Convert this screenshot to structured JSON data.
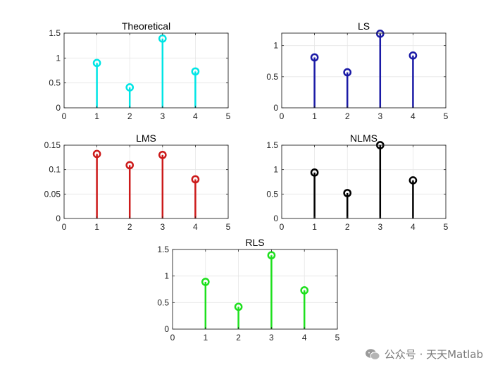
{
  "chart_data": [
    {
      "type": "stem",
      "title": "Theoretical",
      "color": "#00e5e5",
      "x": [
        1,
        2,
        3,
        4
      ],
      "values": [
        0.9,
        0.41,
        1.39,
        0.73
      ],
      "xlim": [
        0,
        5
      ],
      "ylim": [
        0,
        1.5
      ],
      "xticks": [
        "0",
        "1",
        "2",
        "3",
        "4",
        "5"
      ],
      "yticks": [
        "0",
        "0.5",
        "1",
        "1.5"
      ],
      "grid": true
    },
    {
      "type": "stem",
      "title": "LS",
      "color": "#1a1aa6",
      "x": [
        1,
        2,
        3,
        4
      ],
      "values": [
        0.81,
        0.57,
        1.19,
        0.84
      ],
      "xlim": [
        0,
        5
      ],
      "ylim": [
        0,
        1.2
      ],
      "xticks": [
        "0",
        "1",
        "2",
        "3",
        "4",
        "5"
      ],
      "yticks": [
        "0",
        "0.5",
        "1"
      ],
      "grid": true
    },
    {
      "type": "stem",
      "title": "LMS",
      "color": "#cc1a1a",
      "x": [
        1,
        2,
        3,
        4
      ],
      "values": [
        0.132,
        0.109,
        0.13,
        0.08
      ],
      "xlim": [
        0,
        5
      ],
      "ylim": [
        0,
        0.15
      ],
      "xticks": [
        "0",
        "1",
        "2",
        "3",
        "4",
        "5"
      ],
      "yticks": [
        "0",
        "0.05",
        "0.1",
        "0.15"
      ],
      "grid": true
    },
    {
      "type": "stem",
      "title": "NLMS",
      "color": "#000000",
      "x": [
        1,
        2,
        3,
        4
      ],
      "values": [
        0.94,
        0.52,
        1.5,
        0.78
      ],
      "xlim": [
        0,
        5
      ],
      "ylim": [
        0,
        1.5
      ],
      "xticks": [
        "0",
        "1",
        "2",
        "3",
        "4",
        "5"
      ],
      "yticks": [
        "0",
        "0.5",
        "1",
        "1.5"
      ],
      "grid": true
    },
    {
      "type": "stem",
      "title": "RLS",
      "color": "#1ee01e",
      "x": [
        1,
        2,
        3,
        4
      ],
      "values": [
        0.89,
        0.42,
        1.39,
        0.73
      ],
      "xlim": [
        0,
        5
      ],
      "ylim": [
        0,
        1.5
      ],
      "xticks": [
        "0",
        "1",
        "2",
        "3",
        "4",
        "5"
      ],
      "yticks": [
        "0",
        "0.5",
        "1",
        "1.5"
      ],
      "grid": true
    }
  ],
  "watermark": {
    "text": "公众号 · 天天Matlab",
    "icon": "wechat-icon"
  }
}
